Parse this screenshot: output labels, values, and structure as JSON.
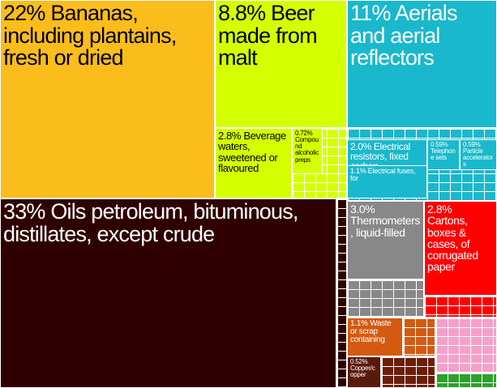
{
  "chart_data": {
    "type": "treemap",
    "items": [
      {
        "name": "Bananas, including plantains, fresh or dried",
        "value": 22,
        "value_label": "22%",
        "color": "#fbbd1b"
      },
      {
        "name": "Beer made from malt",
        "value": 8.8,
        "value_label": "8.8%",
        "color": "#d4ff00"
      },
      {
        "name": "Beverage waters, sweetened or flavoured",
        "value": 2.8,
        "value_label": "2.8%",
        "color": "#d4ff00"
      },
      {
        "name": "Compound alcoholic preps",
        "value": 0.72,
        "value_label": "0.72%",
        "color": "#d4ff00"
      },
      {
        "name": "Aerials and aerial reflectors",
        "value": 11,
        "value_label": "11%",
        "color": "#1ab8cc"
      },
      {
        "name": "Electrical resistors, fixed carbon",
        "value": 2.0,
        "value_label": "2.0%",
        "color": "#1ab8cc"
      },
      {
        "name": "Telephone sets",
        "value": 0.59,
        "value_label": "0.59%",
        "color": "#1ab8cc"
      },
      {
        "name": "Particle accelerators",
        "value": 0.59,
        "value_label": "0.59%",
        "color": "#1ab8cc"
      },
      {
        "name": "Electrical fuses, for",
        "value": 1.1,
        "value_label": "1.1%",
        "color": "#1ab8cc"
      },
      {
        "name": "Oils petroleum, bituminous, distillates, except crude",
        "value": 33,
        "value_label": "33%",
        "color": "#2e0000"
      },
      {
        "name": "Thermometers, liquid-filled",
        "value": 3.0,
        "value_label": "3.0%",
        "color": "#888888"
      },
      {
        "name": "Cartons, boxes & cases, of corrugated paper",
        "value": 2.8,
        "value_label": "2.8%",
        "color": "#ff0000"
      },
      {
        "name": "Waste or scrap containing",
        "value": 1.1,
        "value_label": "1.1%",
        "color": "#d35a10"
      },
      {
        "name": "Copper/copper",
        "value": 0.52,
        "value_label": "0.52%",
        "color": "#5a1a0a"
      }
    ]
  }
}
